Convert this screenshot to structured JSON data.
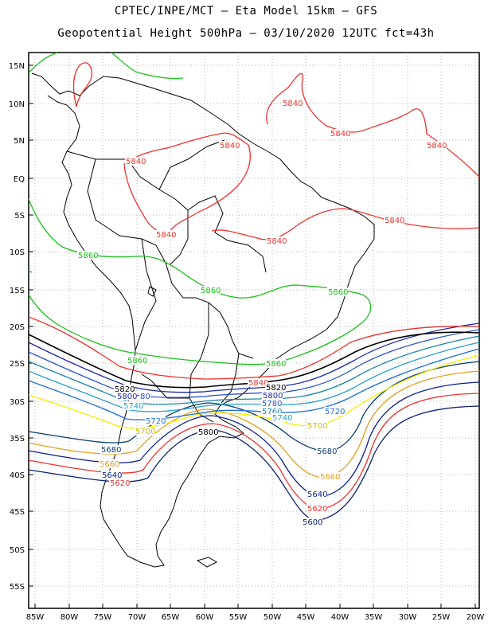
{
  "header": {
    "line1": "CPTEC/INPE/MCT – Eta Model 15km – GFS",
    "line2": "Geopotential Height 500hPa – 03/10/2020 12UTC fct=43h"
  },
  "axes": {
    "lat_ticks": [
      "15N",
      "10N",
      "5N",
      "EQ",
      "5S",
      "10S",
      "15S",
      "20S",
      "25S",
      "30S",
      "35S",
      "40S",
      "45S",
      "50S",
      "55S"
    ],
    "lon_ticks": [
      "85W",
      "80W",
      "75W",
      "70W",
      "65W",
      "60W",
      "55W",
      "50W",
      "45W",
      "40W",
      "35W",
      "30W",
      "25W",
      "20W"
    ]
  },
  "colors": {
    "c5600": "#0a1f6e",
    "c5620": "#e8322e",
    "c5640": "#0b1f8c",
    "c5660": "#e0a020",
    "c5680": "#0a3b6e",
    "c5700": "#f2f000",
    "c5720": "#1f6fd0",
    "c5740": "#2aa0c8",
    "c5760": "#1a86a8",
    "c5780": "#2c55c8",
    "c5800": "#1e2aa0",
    "c5820": "#000000",
    "c5840": "#e8322e",
    "c5860": "#19c019",
    "coast": "#000000"
  },
  "contour_labels": [
    {
      "text": "5840",
      "color": "#e8322e"
    },
    {
      "text": "5840",
      "color": "#e8322e"
    },
    {
      "text": "5840",
      "color": "#e8322e"
    },
    {
      "text": "5840",
      "color": "#e8322e"
    },
    {
      "text": "5840",
      "color": "#e8322e"
    },
    {
      "text": "5840",
      "color": "#e8322e"
    },
    {
      "text": "5840",
      "color": "#e8322e"
    },
    {
      "text": "5840",
      "color": "#e8322e"
    },
    {
      "text": "5840",
      "color": "#e8322e"
    },
    {
      "text": "5860",
      "color": "#19c019"
    },
    {
      "text": "5860",
      "color": "#19c019"
    },
    {
      "text": "5860",
      "color": "#19c019"
    },
    {
      "text": "5860",
      "color": "#19c019"
    },
    {
      "text": "5860",
      "color": "#19c019"
    },
    {
      "text": "5820",
      "color": "#000000"
    },
    {
      "text": "5820",
      "color": "#000000"
    },
    {
      "text": "5800",
      "color": "#1e2aa0"
    },
    {
      "text": "5800",
      "color": "#1e2aa0"
    },
    {
      "text": "5800",
      "color": "#000000"
    },
    {
      "text": "80",
      "color": "#2c55c8"
    },
    {
      "text": "5780",
      "color": "#2c55c8"
    },
    {
      "text": "5760",
      "color": "#1a86a8"
    },
    {
      "text": "5740",
      "color": "#2aa0c8"
    },
    {
      "text": "5740",
      "color": "#2aa0c8"
    },
    {
      "text": "5720",
      "color": "#1f6fd0"
    },
    {
      "text": "5720",
      "color": "#1f6fd0"
    },
    {
      "text": "5700",
      "color": "#c8c000"
    },
    {
      "text": "5700",
      "color": "#c8c000"
    },
    {
      "text": "5680",
      "color": "#0a3b6e"
    },
    {
      "text": "5680",
      "color": "#0a3b6e"
    },
    {
      "text": "5660",
      "color": "#e0a020"
    },
    {
      "text": "5660",
      "color": "#e0a020"
    },
    {
      "text": "5640",
      "color": "#0b1f8c"
    },
    {
      "text": "5640",
      "color": "#0b1f8c"
    },
    {
      "text": "5620",
      "color": "#e8322e"
    },
    {
      "text": "5620",
      "color": "#e8322e"
    },
    {
      "text": "5600",
      "color": "#0a1f6e"
    }
  ]
}
